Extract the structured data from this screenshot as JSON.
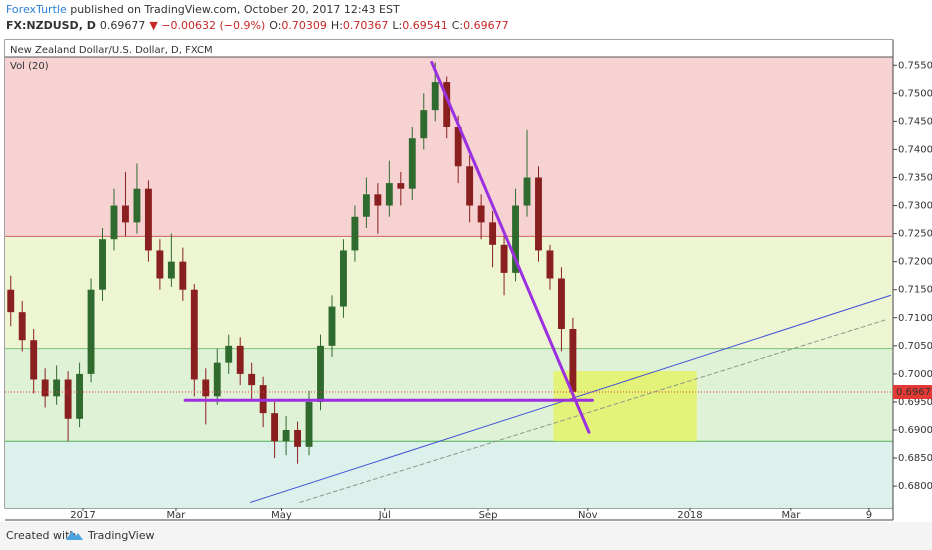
{
  "header": {
    "author": "ForexTurtle",
    "published": " published on TradingView.com, October 20, 2017 12:43 EST",
    "symbol": "FX:NZDUSD, D",
    "quote": "0.69677",
    "change": "▼ −0.00632 (−0.9%)",
    "ohlc": [
      {
        "label": "O:",
        "value": "0.70309"
      },
      {
        "label": "H:",
        "value": "0.70367"
      },
      {
        "label": "L:",
        "value": "0.69541"
      },
      {
        "label": "C:",
        "value": "0.69677"
      }
    ]
  },
  "footer": {
    "created": "Created with",
    "brand": "TradingView"
  },
  "chart_data": {
    "type": "candlestick",
    "title": "New Zealand Dollar/U.S. Dollar, D, FXCM",
    "indicator": "Vol (20)",
    "x": [
      0,
      1,
      2,
      3,
      4,
      5,
      6,
      7,
      8,
      9,
      10,
      11,
      12,
      13,
      14,
      15,
      16,
      17,
      18,
      19,
      20,
      21,
      22,
      23,
      24,
      25,
      26,
      27,
      28,
      29,
      30,
      31,
      32,
      33,
      34,
      35,
      36,
      37,
      38,
      39,
      40,
      41,
      42,
      43,
      44,
      45,
      46,
      47,
      48,
      49
    ],
    "open": [
      0.715,
      0.711,
      0.706,
      0.699,
      0.696,
      0.699,
      0.692,
      0.7,
      0.715,
      0.724,
      0.73,
      0.727,
      0.733,
      0.722,
      0.717,
      0.72,
      0.715,
      0.699,
      0.696,
      0.702,
      0.705,
      0.7,
      0.698,
      0.693,
      0.688,
      0.69,
      0.687,
      0.695,
      0.705,
      0.712,
      0.722,
      0.728,
      0.732,
      0.73,
      0.734,
      0.733,
      0.742,
      0.747,
      0.752,
      0.744,
      0.737,
      0.73,
      0.727,
      0.723,
      0.718,
      0.73,
      0.735,
      0.722,
      0.717,
      0.708
    ],
    "high": [
      0.7175,
      0.713,
      0.708,
      0.701,
      0.7015,
      0.7005,
      0.702,
      0.717,
      0.726,
      0.733,
      0.736,
      0.7375,
      0.7345,
      0.724,
      0.725,
      0.7225,
      0.716,
      0.701,
      0.7045,
      0.707,
      0.7065,
      0.702,
      0.6995,
      0.695,
      0.6925,
      0.6915,
      0.697,
      0.707,
      0.714,
      0.724,
      0.73,
      0.735,
      0.734,
      0.738,
      0.736,
      0.744,
      0.75,
      0.7555,
      0.753,
      0.746,
      0.739,
      0.732,
      0.729,
      0.725,
      0.733,
      0.7435,
      0.737,
      0.723,
      0.719,
      0.71
    ],
    "low": [
      0.7085,
      0.704,
      0.6965,
      0.694,
      0.6945,
      0.688,
      0.6905,
      0.6985,
      0.713,
      0.722,
      0.7245,
      0.725,
      0.72,
      0.715,
      0.7155,
      0.713,
      0.696,
      0.691,
      0.6945,
      0.7,
      0.698,
      0.6955,
      0.6905,
      0.685,
      0.6855,
      0.684,
      0.6855,
      0.6935,
      0.703,
      0.71,
      0.72,
      0.726,
      0.725,
      0.728,
      0.73,
      0.731,
      0.74,
      0.745,
      0.742,
      0.734,
      0.727,
      0.724,
      0.719,
      0.714,
      0.7165,
      0.728,
      0.72,
      0.715,
      0.704,
      0.6954
    ],
    "close": [
      0.711,
      0.706,
      0.699,
      0.696,
      0.699,
      0.692,
      0.7,
      0.715,
      0.724,
      0.73,
      0.727,
      0.733,
      0.722,
      0.717,
      0.72,
      0.715,
      0.699,
      0.696,
      0.702,
      0.705,
      0.7,
      0.698,
      0.693,
      0.688,
      0.69,
      0.687,
      0.695,
      0.705,
      0.712,
      0.722,
      0.728,
      0.732,
      0.73,
      0.734,
      0.733,
      0.742,
      0.747,
      0.752,
      0.744,
      0.737,
      0.73,
      0.727,
      0.723,
      0.718,
      0.73,
      0.735,
      0.722,
      0.717,
      0.708,
      0.6968
    ],
    "up_color": "#2f6b2f",
    "down_color": "#8a1f1f",
    "xlim": [
      -0.5,
      76.9
    ],
    "ylim": [
      0.6761,
      0.7595
    ],
    "xticks": [
      {
        "value": 6.3,
        "label": "2017"
      },
      {
        "value": 14.4,
        "label": "Mar"
      },
      {
        "value": 23.6,
        "label": "May"
      },
      {
        "value": 32.6,
        "label": "Jul"
      },
      {
        "value": 41.6,
        "label": "Sep"
      },
      {
        "value": 50.3,
        "label": "Nov"
      },
      {
        "value": 59.2,
        "label": "2018"
      },
      {
        "value": 68.0,
        "label": "Mar"
      },
      {
        "value": 74.8,
        "label": "9"
      }
    ],
    "yticks": [
      {
        "value": 0.68,
        "label": "0.68000"
      },
      {
        "value": 0.685,
        "label": "0.68500"
      },
      {
        "value": 0.69,
        "label": "0.69000"
      },
      {
        "value": 0.695,
        "label": "0.69500"
      },
      {
        "value": 0.7,
        "label": "0.70000"
      },
      {
        "value": 0.705,
        "label": "0.70500"
      },
      {
        "value": 0.71,
        "label": "0.71000"
      },
      {
        "value": 0.715,
        "label": "0.71500"
      },
      {
        "value": 0.72,
        "label": "0.72000"
      },
      {
        "value": 0.725,
        "label": "0.72500"
      },
      {
        "value": 0.73,
        "label": "0.73000"
      },
      {
        "value": 0.735,
        "label": "0.73500"
      },
      {
        "value": 0.74,
        "label": "0.74000"
      },
      {
        "value": 0.745,
        "label": "0.74500"
      },
      {
        "value": 0.75,
        "label": "0.75000"
      },
      {
        "value": 0.755,
        "label": "0.75500"
      }
    ],
    "zones": [
      {
        "from": 0.7245,
        "to": 0.7595,
        "color": "#f6d2d2"
      },
      {
        "from": 0.7045,
        "to": 0.7245,
        "color": "#eef5d3"
      },
      {
        "from": 0.688,
        "to": 0.7045,
        "color": "#e0f2d6"
      },
      {
        "from": 0.6761,
        "to": 0.688,
        "color": "#dcf1ec"
      }
    ],
    "levels": [
      {
        "value": 0.7245,
        "color": "#d06060"
      },
      {
        "value": 0.7045,
        "color": "#7ac07a"
      },
      {
        "value": 0.688,
        "color": "#4caf50"
      }
    ],
    "drawings": [
      {
        "kind": "rect",
        "x": [
          47.3,
          59.8
        ],
        "y": [
          0.7005,
          0.688
        ],
        "color": "#e4f25a"
      },
      {
        "kind": "line",
        "x": [
          20.9,
          76.7
        ],
        "y": [
          0.6771,
          0.714
        ],
        "color": "#3f51d6",
        "width": 1
      },
      {
        "kind": "dash",
        "x": [
          25.2,
          76.2
        ],
        "y": [
          0.6771,
          0.7096
        ],
        "color": "#8a9a8a",
        "width": 1
      },
      {
        "kind": "line",
        "x": [
          36.7,
          50.4
        ],
        "y": [
          0.7555,
          0.6896
        ],
        "color": "#9b30e0",
        "width": 3
      },
      {
        "kind": "line",
        "x": [
          15.2,
          50.7
        ],
        "y": [
          0.6953,
          0.6953
        ],
        "color": "#9b30e0",
        "width": 3
      }
    ],
    "last_price": 0.69677,
    "last_color": "#e53935"
  }
}
